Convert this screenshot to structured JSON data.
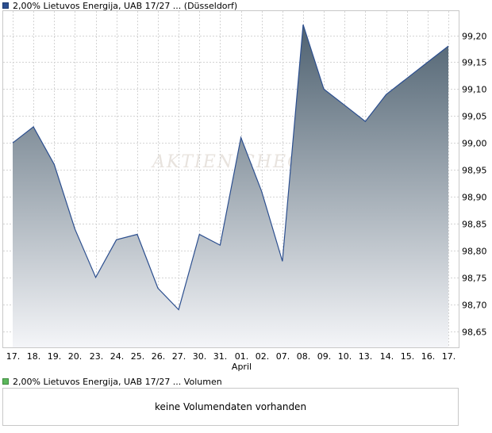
{
  "legend": {
    "price": {
      "label": "2,00% Lietuvos Energija, UAB 17/27 ... (Düsseldorf)",
      "color": "#2c4f8f"
    },
    "volume": {
      "label": "2,00% Lietuvos Energija, UAB 17/27 ... Volumen",
      "color": "#5cb85c"
    }
  },
  "watermark": "AKTIEN CHECK",
  "volume_panel": {
    "message": "keine Volumendaten vorhanden"
  },
  "chart_data": {
    "type": "area",
    "x": [
      "17.",
      "18.",
      "19.",
      "20.",
      "23.",
      "24.",
      "25.",
      "26.",
      "27.",
      "30.",
      "31.",
      "01.",
      "02.",
      "07.",
      "08.",
      "09.",
      "10.",
      "13.",
      "14.",
      "15.",
      "16.",
      "17."
    ],
    "x_sublabel": {
      "index": 11,
      "text": "April"
    },
    "series": [
      {
        "values": [
          99.0,
          99.03,
          98.96,
          98.84,
          98.75,
          98.82,
          98.83,
          98.73,
          98.69,
          98.83,
          98.81,
          99.01,
          98.91,
          98.78,
          99.22,
          99.1,
          99.07,
          99.04,
          99.09,
          99.12,
          99.15,
          99.18
        ]
      }
    ],
    "y_ticks": [
      "99,20",
      "99,15",
      "99,10",
      "99,05",
      "99,00",
      "98,95",
      "98,90",
      "98,85",
      "98,80",
      "98,75",
      "98,70",
      "98,65"
    ],
    "ylim": [
      98.62,
      99.245
    ],
    "y_axis_side": "right",
    "grid": true,
    "colors": {
      "line": "#2c4f8f",
      "fill_top": "#4e6170",
      "fill_bottom": "#f4f5f8"
    }
  }
}
